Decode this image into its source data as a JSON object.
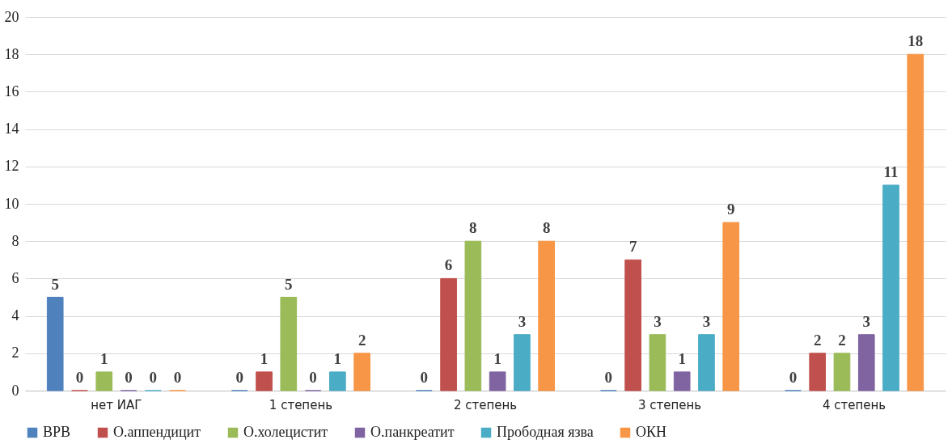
{
  "chart_data": {
    "type": "bar",
    "categories": [
      "нет ИАГ",
      "1 степень",
      "2 степень",
      "3 степень",
      "4 степень"
    ],
    "series": [
      {
        "name": "ВРВ",
        "color": "#4f81bd",
        "values": [
          5,
          0,
          0,
          0,
          0
        ]
      },
      {
        "name": "О.аппендицит",
        "color": "#c0504d",
        "values": [
          0,
          1,
          6,
          7,
          2
        ]
      },
      {
        "name": "О.холецистит",
        "color": "#9bbb59",
        "values": [
          1,
          5,
          8,
          3,
          2
        ]
      },
      {
        "name": "О.панкреатит",
        "color": "#8064a2",
        "values": [
          0,
          0,
          1,
          1,
          3
        ]
      },
      {
        "name": "Прободная язва",
        "color": "#4bacc6",
        "values": [
          0,
          1,
          3,
          3,
          11
        ]
      },
      {
        "name": "ОКН",
        "color": "#f79646",
        "values": [
          0,
          2,
          8,
          9,
          18
        ]
      }
    ],
    "ylim": [
      0,
      20
    ],
    "yticks": [
      0,
      2,
      4,
      6,
      8,
      10,
      12,
      14,
      16,
      18,
      20
    ],
    "grid": "y",
    "legend": "bottom",
    "data_labels": true
  }
}
